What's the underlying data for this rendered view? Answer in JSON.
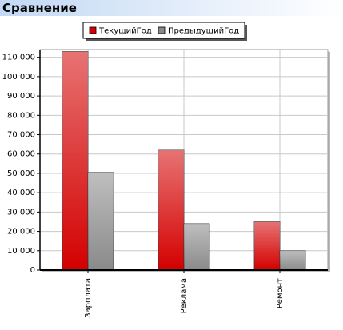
{
  "header": {
    "title": "Сравнение"
  },
  "chart_data": {
    "type": "bar",
    "categories": [
      "Зарплата",
      "Реклама",
      "Ремонт"
    ],
    "series": [
      {
        "name": "ТекущийГод",
        "color": "#d40000",
        "values": [
          113000,
          62000,
          25000
        ]
      },
      {
        "name": "ПредыдущийГод",
        "color": "#8a8a8a",
        "values": [
          50500,
          24000,
          10000
        ]
      }
    ],
    "ylim": [
      0,
      114000
    ],
    "yticks": [
      0,
      {
        "value": 10000,
        "label": "10 000"
      },
      {
        "value": 20000,
        "label": "20 000"
      },
      {
        "value": 30000,
        "label": "30 000"
      },
      {
        "value": 40000,
        "label": "40 000"
      },
      {
        "value": 50000,
        "label": "50 000"
      },
      {
        "value": 60000,
        "label": "60 000"
      },
      {
        "value": 70000,
        "label": "70 000"
      },
      {
        "value": 80000,
        "label": "80 000"
      },
      {
        "value": 90000,
        "label": "90 000"
      },
      {
        "value": 100000,
        "label": "100 000"
      },
      {
        "value": 110000,
        "label": "110 000"
      }
    ],
    "grid": true
  }
}
